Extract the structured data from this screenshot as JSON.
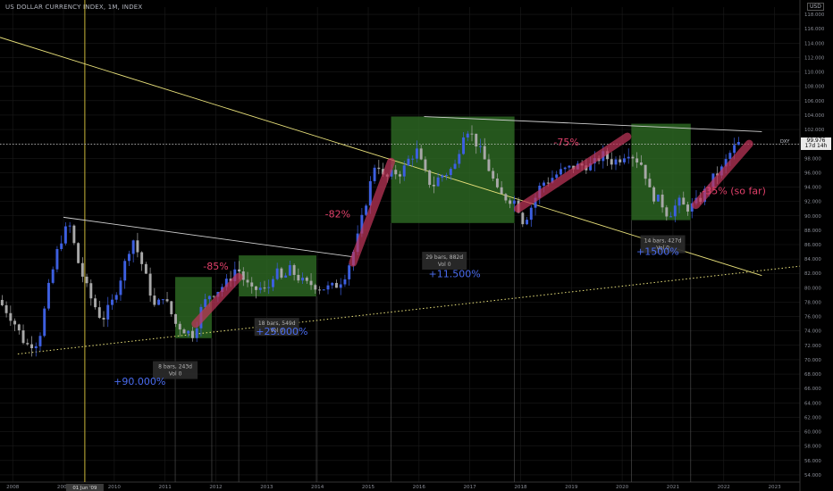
{
  "header": {
    "title": "US DOLLAR CURRENCY INDEX, 1M, INDEX",
    "currency": "USD"
  },
  "price_label": {
    "ticker": "DXY",
    "price": "99.976",
    "countdown": "17d 14h"
  },
  "colors": {
    "up": "#3d5fe0",
    "down": "#a8a8a8",
    "box": "#2e6b24",
    "trend": "#e8e07a",
    "path": "#c0365a",
    "accent_pink": "#e0406a",
    "accent_blue": "#4a6cf0",
    "grid": "#1b1b1b"
  },
  "chart_data": {
    "type": "candlestick",
    "title": "US DOLLAR CURRENCY INDEX, 1M, INDEX",
    "ylim": [
      53,
      119
    ],
    "xlim": [
      2007.75,
      2023.5
    ],
    "y_ticks": [
      "54.000",
      "56.000",
      "58.000",
      "60.000",
      "62.000",
      "64.000",
      "66.000",
      "68.000",
      "70.000",
      "72.000",
      "74.000",
      "76.000",
      "78.000",
      "80.000",
      "82.000",
      "84.000",
      "86.000",
      "88.000",
      "90.000",
      "92.000",
      "94.000",
      "96.000",
      "98.000",
      "100.000",
      "102.000",
      "104.000",
      "106.000",
      "108.000",
      "110.000",
      "112.000",
      "114.000",
      "116.000",
      "118.000"
    ],
    "x_ticks": [
      "2008",
      "2009",
      "2010",
      "2011",
      "2012",
      "2013",
      "2014",
      "2015",
      "2016",
      "2017",
      "2018",
      "2019",
      "2020",
      "2021",
      "2022",
      "2023"
    ],
    "highlight_date": "01 Jun '09",
    "current_price": 99.976,
    "price_series": [
      [
        2007.5,
        80.5
      ],
      [
        2007.9,
        77
      ],
      [
        2008.05,
        75.5
      ],
      [
        2008.3,
        72
      ],
      [
        2008.55,
        72.5
      ],
      [
        2008.75,
        80
      ],
      [
        2008.95,
        86
      ],
      [
        2009.15,
        89
      ],
      [
        2009.35,
        83
      ],
      [
        2009.55,
        79
      ],
      [
        2009.8,
        75.5
      ],
      [
        2010.0,
        78
      ],
      [
        2010.15,
        81
      ],
      [
        2010.4,
        87
      ],
      [
        2010.6,
        83
      ],
      [
        2010.85,
        77
      ],
      [
        2011.0,
        79
      ],
      [
        2011.25,
        75
      ],
      [
        2011.45,
        74
      ],
      [
        2011.6,
        73.5
      ],
      [
        2011.75,
        77
      ],
      [
        2011.9,
        79
      ],
      [
        2012.05,
        79.5
      ],
      [
        2012.3,
        81
      ],
      [
        2012.45,
        83
      ],
      [
        2012.6,
        81
      ],
      [
        2012.75,
        79.5
      ],
      [
        2012.9,
        80
      ],
      [
        2013.05,
        79.5
      ],
      [
        2013.2,
        82.5
      ],
      [
        2013.35,
        81
      ],
      [
        2013.5,
        82.5
      ],
      [
        2013.65,
        81.5
      ],
      [
        2013.8,
        80.5
      ],
      [
        2013.95,
        80.5
      ],
      [
        2014.1,
        80
      ],
      [
        2014.3,
        80
      ],
      [
        2014.45,
        80.5
      ],
      [
        2014.6,
        82
      ],
      [
        2014.8,
        86
      ],
      [
        2015.0,
        92
      ],
      [
        2015.2,
        98
      ],
      [
        2015.35,
        95
      ],
      [
        2015.55,
        96
      ],
      [
        2015.7,
        96
      ],
      [
        2015.85,
        98
      ],
      [
        2016.0,
        99
      ],
      [
        2016.15,
        96
      ],
      [
        2016.3,
        94
      ],
      [
        2016.45,
        95.5
      ],
      [
        2016.6,
        96
      ],
      [
        2016.75,
        97
      ],
      [
        2016.95,
        102.5
      ],
      [
        2017.1,
        101
      ],
      [
        2017.25,
        99
      ],
      [
        2017.45,
        96
      ],
      [
        2017.6,
        93
      ],
      [
        2017.75,
        92.5
      ],
      [
        2017.95,
        92
      ],
      [
        2018.1,
        89
      ],
      [
        2018.3,
        92
      ],
      [
        2018.45,
        94.5
      ],
      [
        2018.6,
        95
      ],
      [
        2018.8,
        96
      ],
      [
        2018.95,
        96.5
      ],
      [
        2019.2,
        97
      ],
      [
        2019.45,
        97
      ],
      [
        2019.65,
        98.5
      ],
      [
        2019.85,
        97.5
      ],
      [
        2020.0,
        98
      ],
      [
        2020.15,
        99
      ],
      [
        2020.3,
        98
      ],
      [
        2020.45,
        97
      ],
      [
        2020.6,
        93
      ],
      [
        2020.8,
        92
      ],
      [
        2020.95,
        90
      ],
      [
        2021.15,
        92
      ],
      [
        2021.3,
        91
      ],
      [
        2021.45,
        91.5
      ],
      [
        2021.6,
        92.5
      ],
      [
        2021.8,
        95
      ],
      [
        2022.0,
        96.5
      ],
      [
        2022.15,
        98.5
      ],
      [
        2022.3,
        100
      ]
    ],
    "rectangles": [
      {
        "x0": 2011.2,
        "x1": 2011.92,
        "y0": 73,
        "y1": 81.5
      },
      {
        "x0": 2012.45,
        "x1": 2013.98,
        "y0": 78.8,
        "y1": 84.5
      },
      {
        "x0": 2015.45,
        "x1": 2017.88,
        "y0": 89,
        "y1": 103.8
      },
      {
        "x0": 2020.18,
        "x1": 2021.35,
        "y0": 89.4,
        "y1": 102.8
      }
    ],
    "trendlines": [
      {
        "kind": "solid",
        "color": "#e8e07a",
        "x0": 2007.75,
        "y0": 114.8,
        "x1": 2022.75,
        "y1": 81.7
      },
      {
        "kind": "dotted",
        "color": "#e8e07a",
        "x0": 2008.1,
        "y0": 70.8,
        "x1": 2023.5,
        "y1": 83
      },
      {
        "kind": "solid",
        "color": "#cfcfcf",
        "x0": 2009.0,
        "y0": 89.8,
        "x1": 2014.7,
        "y1": 84.3
      },
      {
        "kind": "solid",
        "color": "#cfcfcf",
        "x0": 2016.1,
        "y0": 103.8,
        "x1": 2022.75,
        "y1": 101.7
      }
    ],
    "corrections": [
      {
        "label": "-85%",
        "x0": 2011.6,
        "y0": 75,
        "x1": 2012.45,
        "y1": 81.5
      },
      {
        "label": "-82%",
        "x0": 2014.7,
        "y0": 83.5,
        "x1": 2015.45,
        "y1": 97.5
      },
      {
        "label": "-75%",
        "x0": 2017.95,
        "y0": 91,
        "x1": 2020.1,
        "y1": 101
      },
      {
        "label": "-35% (so far)",
        "x0": 2021.45,
        "y0": 91.5,
        "x1": 2022.5,
        "y1": 100
      }
    ],
    "measure_boxes": [
      {
        "bars": "8 bars, 243d",
        "vol": "Vol 0",
        "x": 2011.2,
        "y": 69.8
      },
      {
        "bars": "18 bars, 549d",
        "vol": "Vol 0",
        "x": 2013.2,
        "y": 75.8
      },
      {
        "bars": "29 bars, 882d",
        "vol": "Vol 0",
        "x": 2016.5,
        "y": 85
      },
      {
        "bars": "14 bars, 427d",
        "vol": "Vol 0",
        "x": 2020.8,
        "y": 87.3
      }
    ],
    "annotations": [
      {
        "text": "-85%",
        "color": "#e0406a",
        "x": 2012.0,
        "y": 82.5
      },
      {
        "text": "+90.000%",
        "color": "#4a6cf0",
        "x": 2010.5,
        "y": 66.5
      },
      {
        "text": "+25.000%",
        "color": "#4a6cf0",
        "x": 2013.3,
        "y": 73.5
      },
      {
        "text": "-82%",
        "color": "#e0406a",
        "x": 2014.4,
        "y": 89.8
      },
      {
        "text": "+11.500%",
        "color": "#4a6cf0",
        "x": 2016.7,
        "y": 81.5
      },
      {
        "text": "-75%",
        "color": "#e0406a",
        "x": 2018.9,
        "y": 99.8
      },
      {
        "text": "+1500%",
        "color": "#4a6cf0",
        "x": 2020.7,
        "y": 84.6
      },
      {
        "text": "-35% (so far)",
        "color": "#e0406a",
        "x": 2022.2,
        "y": 93
      }
    ]
  }
}
